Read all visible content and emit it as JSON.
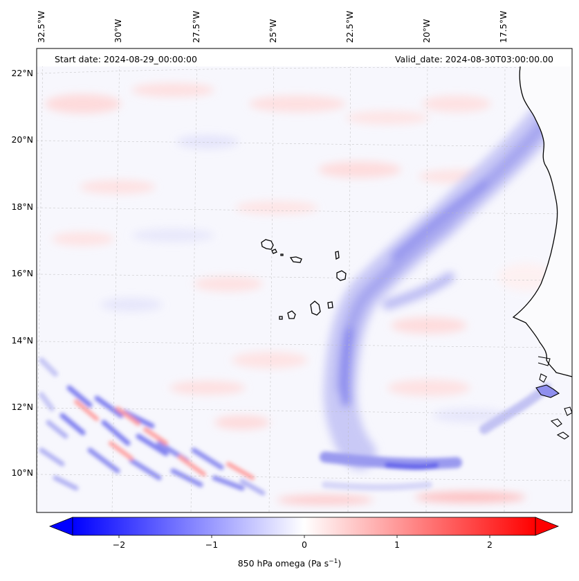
{
  "map": {
    "start_date": "Start date: 2024-08-29_00:00:00",
    "valid_date": "Valid_date: 2024-08-30T03:00:00.00",
    "lon_labels": [
      "32.5°W",
      "30°W",
      "27.5°W",
      "25°W",
      "22.5°W",
      "20°W",
      "17.5°W"
    ],
    "lat_labels": [
      "22°N",
      "20°N",
      "18°N",
      "16°N",
      "14°N",
      "12°N",
      "10°N"
    ],
    "extent": {
      "lon_min": -32.6,
      "lon_max": -15.3,
      "lat_min": 8.9,
      "lat_max": 22.8
    },
    "islands": "Cabo Verde islands",
    "coastline": "West African coast"
  },
  "colorbar": {
    "label_prefix": "850 hPa omega (Pa s",
    "label_exp": "−1",
    "label_suffix": ")",
    "ticks": [
      "−2",
      "−1",
      "0",
      "1",
      "2"
    ],
    "range": [
      -2.5,
      2.5
    ],
    "colormap": "bwr",
    "colors": {
      "low": "#0000ff",
      "mid": "#ffffff",
      "high": "#ff0000"
    }
  }
}
